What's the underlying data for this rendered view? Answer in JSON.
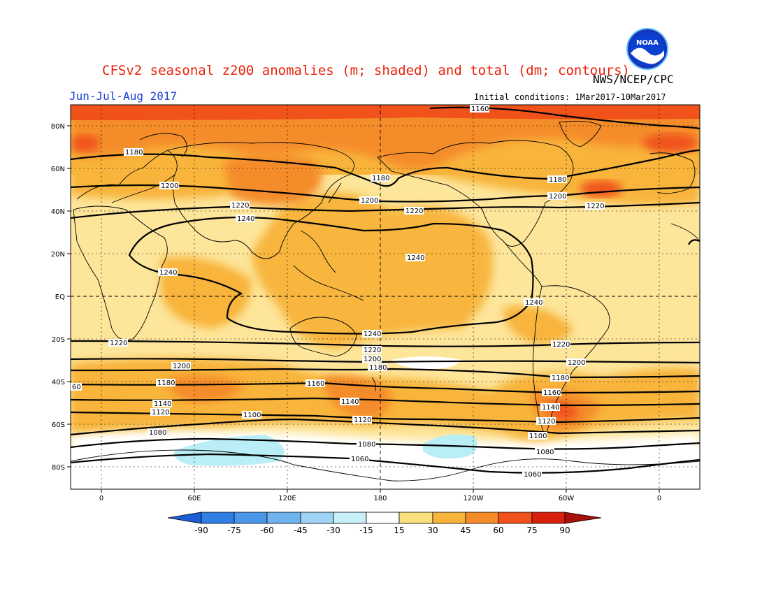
{
  "title": "CFSv2 seasonal z200 anomalies (m; shaded) and total (dm; contours)",
  "period": "Jun-Jul-Aug 2017",
  "agency": "NWS/NCEP/CPC",
  "initial_conditions": "Initial conditions: 1Mar2017-10Mar2017",
  "logo_text": "NOAA",
  "lat_labels": [
    "80N",
    "60N",
    "40N",
    "20N",
    "EQ",
    "20S",
    "40S",
    "60S",
    "80S"
  ],
  "lon_labels": [
    "0",
    "60E",
    "120E",
    "180",
    "120W",
    "60W",
    "0"
  ],
  "colorbar": {
    "ticks": [
      "-90",
      "-75",
      "-60",
      "-45",
      "-30",
      "-15",
      "15",
      "30",
      "45",
      "60",
      "75",
      "90"
    ],
    "colors": [
      "#1a5fd6",
      "#2f7fe4",
      "#4a97ea",
      "#6fb4ef",
      "#9fd4f4",
      "#c8f0f8",
      "#ffffff",
      "#fbe07e",
      "#f8b43a",
      "#f58c2a",
      "#f0521a",
      "#d8200c",
      "#a8100a"
    ]
  },
  "contour_labels": {
    "c1160": "1160",
    "c1180": "1180",
    "c1200": "1200",
    "c1220": "1220",
    "c1240": "1240",
    "c1140": "1140",
    "c1120": "1120",
    "c1100": "1100",
    "c1080": "1080",
    "c1060": "1060",
    "c60": "60"
  },
  "colors": {
    "base_shade": "#fde59a",
    "mid_shade": "#f8b43a",
    "strong_shade": "#f58c2a",
    "max_shade": "#f0521a",
    "negative_shade": "#b9eef6",
    "contour": "#000000",
    "coast": "#000000"
  }
}
